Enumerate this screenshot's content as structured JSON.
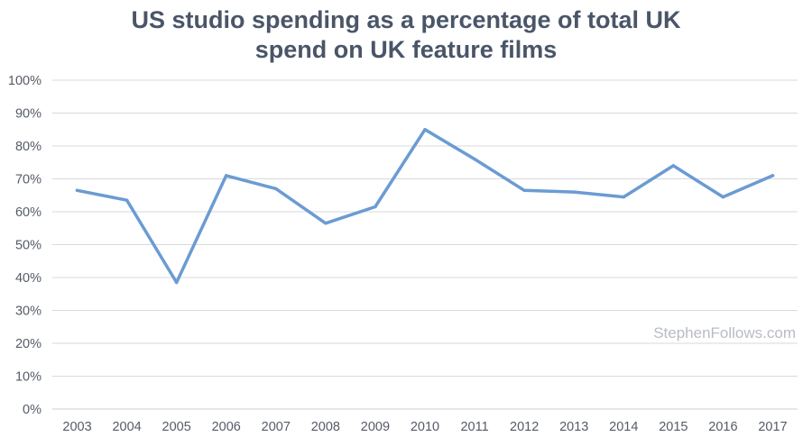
{
  "chart_data": {
    "type": "line",
    "title_line1": "US studio spending as a percentage of total UK",
    "title_line2": "spend on UK feature films",
    "categories": [
      "2003",
      "2004",
      "2005",
      "2006",
      "2007",
      "2008",
      "2009",
      "2010",
      "2011",
      "2012",
      "2013",
      "2014",
      "2015",
      "2016",
      "2017"
    ],
    "series": [
      {
        "values": [
          66.5,
          63.5,
          38.5,
          71,
          67,
          56.5,
          61.5,
          85,
          76,
          66.5,
          66,
          64.5,
          74,
          64.5,
          71
        ],
        "color": "#6b9bd2"
      }
    ],
    "ylim": [
      0,
      100
    ],
    "yticks": [
      "0%",
      "10%",
      "20%",
      "30%",
      "40%",
      "50%",
      "60%",
      "70%",
      "80%",
      "90%",
      "100%"
    ],
    "grid": true,
    "legend": "none",
    "watermark": "StephenFollows.com"
  }
}
